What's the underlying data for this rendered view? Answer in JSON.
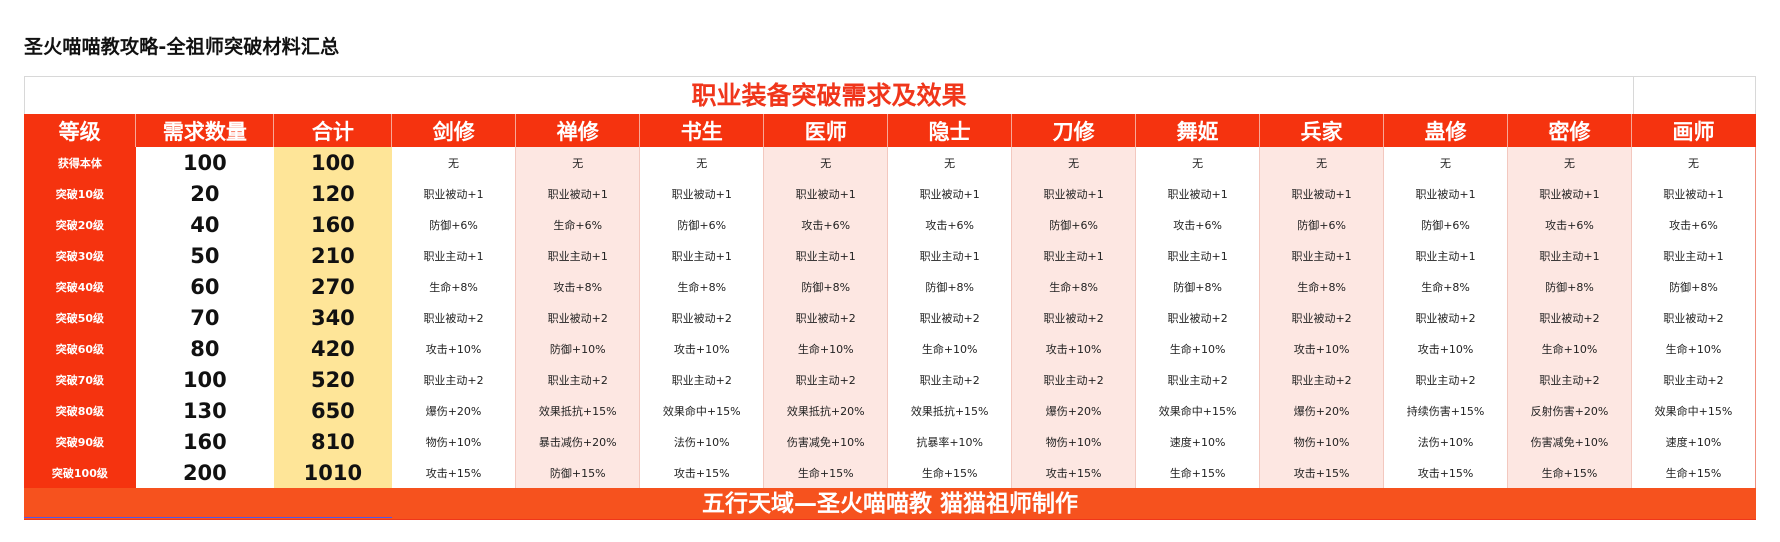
{
  "page_title": "圣火喵喵教攻略-全祖师突破材料汇总",
  "table_title": "职业装备突破需求及效果",
  "headers": [
    "等级",
    "需求数量",
    "合计",
    "剑修",
    "禅修",
    "书生",
    "医师",
    "隐士",
    "刀修",
    "舞姬",
    "兵家",
    "蛊修",
    "密修",
    "画师"
  ],
  "rows": [
    {
      "level": "获得本体",
      "qty": "100",
      "total": "100",
      "effects": [
        "无",
        "无",
        "无",
        "无",
        "无",
        "无",
        "无",
        "无",
        "无",
        "无",
        "无"
      ]
    },
    {
      "level": "突破10级",
      "qty": "20",
      "total": "120",
      "effects": [
        "职业被动+1",
        "职业被动+1",
        "职业被动+1",
        "职业被动+1",
        "职业被动+1",
        "职业被动+1",
        "职业被动+1",
        "职业被动+1",
        "职业被动+1",
        "职业被动+1",
        "职业被动+1"
      ]
    },
    {
      "level": "突破20级",
      "qty": "40",
      "total": "160",
      "effects": [
        "防御+6%",
        "生命+6%",
        "防御+6%",
        "攻击+6%",
        "攻击+6%",
        "防御+6%",
        "攻击+6%",
        "防御+6%",
        "防御+6%",
        "攻击+6%",
        "攻击+6%"
      ]
    },
    {
      "level": "突破30级",
      "qty": "50",
      "total": "210",
      "effects": [
        "职业主动+1",
        "职业主动+1",
        "职业主动+1",
        "职业主动+1",
        "职业主动+1",
        "职业主动+1",
        "职业主动+1",
        "职业主动+1",
        "职业主动+1",
        "职业主动+1",
        "职业主动+1"
      ]
    },
    {
      "level": "突破40级",
      "qty": "60",
      "total": "270",
      "effects": [
        "生命+8%",
        "攻击+8%",
        "生命+8%",
        "防御+8%",
        "防御+8%",
        "生命+8%",
        "防御+8%",
        "生命+8%",
        "生命+8%",
        "防御+8%",
        "防御+8%"
      ]
    },
    {
      "level": "突破50级",
      "qty": "70",
      "total": "340",
      "effects": [
        "职业被动+2",
        "职业被动+2",
        "职业被动+2",
        "职业被动+2",
        "职业被动+2",
        "职业被动+2",
        "职业被动+2",
        "职业被动+2",
        "职业被动+2",
        "职业被动+2",
        "职业被动+2"
      ]
    },
    {
      "level": "突破60级",
      "qty": "80",
      "total": "420",
      "effects": [
        "攻击+10%",
        "防御+10%",
        "攻击+10%",
        "生命+10%",
        "生命+10%",
        "攻击+10%",
        "生命+10%",
        "攻击+10%",
        "攻击+10%",
        "生命+10%",
        "生命+10%"
      ]
    },
    {
      "level": "突破70级",
      "qty": "100",
      "total": "520",
      "effects": [
        "职业主动+2",
        "职业主动+2",
        "职业主动+2",
        "职业主动+2",
        "职业主动+2",
        "职业主动+2",
        "职业主动+2",
        "职业主动+2",
        "职业主动+2",
        "职业主动+2",
        "职业主动+2"
      ]
    },
    {
      "level": "突破80级",
      "qty": "130",
      "total": "650",
      "effects": [
        "爆伤+20%",
        "效果抵抗+15%",
        "效果命中+15%",
        "效果抵抗+20%",
        "效果抵抗+15%",
        "爆伤+20%",
        "效果命中+15%",
        "爆伤+20%",
        "持续伤害+15%",
        "反射伤害+20%",
        "效果命中+15%"
      ]
    },
    {
      "level": "突破90级",
      "qty": "160",
      "total": "810",
      "effects": [
        "物伤+10%",
        "暴击减伤+20%",
        "法伤+10%",
        "伤害减免+10%",
        "抗暴率+10%",
        "物伤+10%",
        "速度+10%",
        "物伤+10%",
        "法伤+10%",
        "伤害减免+10%",
        "速度+10%"
      ]
    },
    {
      "level": "突破100级",
      "qty": "200",
      "total": "1010",
      "effects": [
        "攻击+15%",
        "防御+15%",
        "攻击+15%",
        "生命+15%",
        "生命+15%",
        "攻击+15%",
        "生命+15%",
        "攻击+15%",
        "攻击+15%",
        "生命+15%",
        "生命+15%"
      ]
    }
  ],
  "footer": "五行天域—圣火喵喵教 猫猫祖师制作",
  "colors": {
    "header_red": "#f5330f",
    "title_red": "#f0361b",
    "total_yellow": "#fee598",
    "stripe_pink": "#fde7e2",
    "footer_orange": "#f6521e"
  }
}
